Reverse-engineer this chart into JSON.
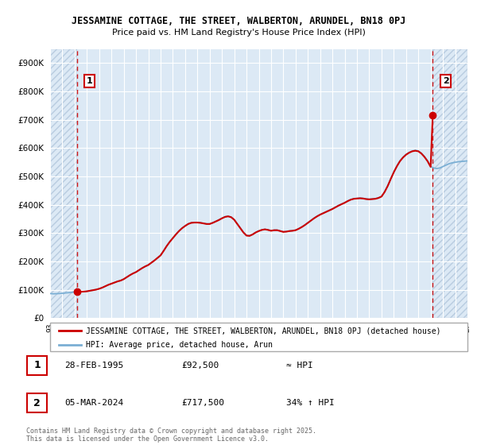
{
  "title": "JESSAMINE COTTAGE, THE STREET, WALBERTON, ARUNDEL, BN18 0PJ",
  "subtitle": "Price paid vs. HM Land Registry's House Price Index (HPI)",
  "ytick_values": [
    0,
    100000,
    200000,
    300000,
    400000,
    500000,
    600000,
    700000,
    800000,
    900000
  ],
  "ylim": [
    0,
    950000
  ],
  "xlim_start": 1993.0,
  "xlim_end": 2027.0,
  "background_color": "#dce9f5",
  "hatch_region_color": "#c8d8e8",
  "grid_color": "#b8cce4",
  "red_line_color": "#cc0000",
  "blue_line_color": "#7bafd4",
  "sale1_year": 1995.17,
  "sale1_price": 92500,
  "sale2_year": 2024.17,
  "sale2_price": 717500,
  "legend_label1": "JESSAMINE COTTAGE, THE STREET, WALBERTON, ARUNDEL, BN18 0PJ (detached house)",
  "legend_label2": "HPI: Average price, detached house, Arun",
  "footnote": "Contains HM Land Registry data © Crown copyright and database right 2025.\nThis data is licensed under the Open Government Licence v3.0.",
  "table_row1": [
    "1",
    "28-FEB-1995",
    "£92,500",
    "≈ HPI"
  ],
  "table_row2": [
    "2",
    "05-MAR-2024",
    "£717,500",
    "34% ↑ HPI"
  ],
  "hpi_data_years": [
    1993.0,
    1993.25,
    1993.5,
    1993.75,
    1994.0,
    1994.25,
    1994.5,
    1994.75,
    1995.0,
    1995.25,
    1995.5,
    1995.75,
    1996.0,
    1996.25,
    1996.5,
    1996.75,
    1997.0,
    1997.25,
    1997.5,
    1997.75,
    1998.0,
    1998.25,
    1998.5,
    1998.75,
    1999.0,
    1999.25,
    1999.5,
    1999.75,
    2000.0,
    2000.25,
    2000.5,
    2000.75,
    2001.0,
    2001.25,
    2001.5,
    2001.75,
    2002.0,
    2002.25,
    2002.5,
    2002.75,
    2003.0,
    2003.25,
    2003.5,
    2003.75,
    2004.0,
    2004.25,
    2004.5,
    2004.75,
    2005.0,
    2005.25,
    2005.5,
    2005.75,
    2006.0,
    2006.25,
    2006.5,
    2006.75,
    2007.0,
    2007.25,
    2007.5,
    2007.75,
    2008.0,
    2008.25,
    2008.5,
    2008.75,
    2009.0,
    2009.25,
    2009.5,
    2009.75,
    2010.0,
    2010.25,
    2010.5,
    2010.75,
    2011.0,
    2011.25,
    2011.5,
    2011.75,
    2012.0,
    2012.25,
    2012.5,
    2012.75,
    2013.0,
    2013.25,
    2013.5,
    2013.75,
    2014.0,
    2014.25,
    2014.5,
    2014.75,
    2015.0,
    2015.25,
    2015.5,
    2015.75,
    2016.0,
    2016.25,
    2016.5,
    2016.75,
    2017.0,
    2017.25,
    2017.5,
    2017.75,
    2018.0,
    2018.25,
    2018.5,
    2018.75,
    2019.0,
    2019.25,
    2019.5,
    2019.75,
    2020.0,
    2020.25,
    2020.5,
    2020.75,
    2021.0,
    2021.25,
    2021.5,
    2021.75,
    2022.0,
    2022.25,
    2022.5,
    2022.75,
    2023.0,
    2023.25,
    2023.5,
    2023.75,
    2024.0,
    2024.25,
    2024.5,
    2024.75,
    2025.0,
    2025.25,
    2025.5,
    2025.75,
    2026.0,
    2026.25,
    2026.5,
    2026.75,
    2027.0
  ],
  "hpi_data_values": [
    87000,
    86000,
    86500,
    87000,
    88000,
    89000,
    90000,
    91000,
    92000,
    93000,
    93500,
    94000,
    95000,
    97000,
    99000,
    101000,
    104000,
    108000,
    113000,
    118000,
    122000,
    126000,
    130000,
    133000,
    138000,
    145000,
    152000,
    158000,
    163000,
    170000,
    177000,
    183000,
    188000,
    196000,
    204000,
    213000,
    222000,
    238000,
    255000,
    270000,
    283000,
    296000,
    308000,
    318000,
    326000,
    333000,
    337000,
    338000,
    338000,
    337000,
    335000,
    333000,
    333000,
    337000,
    342000,
    347000,
    353000,
    358000,
    360000,
    357000,
    348000,
    333000,
    318000,
    303000,
    292000,
    291000,
    296000,
    303000,
    308000,
    312000,
    314000,
    312000,
    309000,
    311000,
    311000,
    308000,
    305000,
    306000,
    308000,
    309000,
    311000,
    316000,
    322000,
    329000,
    337000,
    345000,
    353000,
    360000,
    366000,
    371000,
    376000,
    381000,
    386000,
    392000,
    398000,
    403000,
    408000,
    414000,
    419000,
    422000,
    423000,
    424000,
    423000,
    421000,
    420000,
    421000,
    422000,
    425000,
    430000,
    446000,
    467000,
    492000,
    516000,
    537000,
    555000,
    568000,
    578000,
    585000,
    590000,
    592000,
    590000,
    582000,
    570000,
    555000,
    535000,
    530000,
    528000,
    530000,
    535000,
    540000,
    545000,
    548000,
    550000,
    552000,
    553000,
    554000,
    555000
  ]
}
